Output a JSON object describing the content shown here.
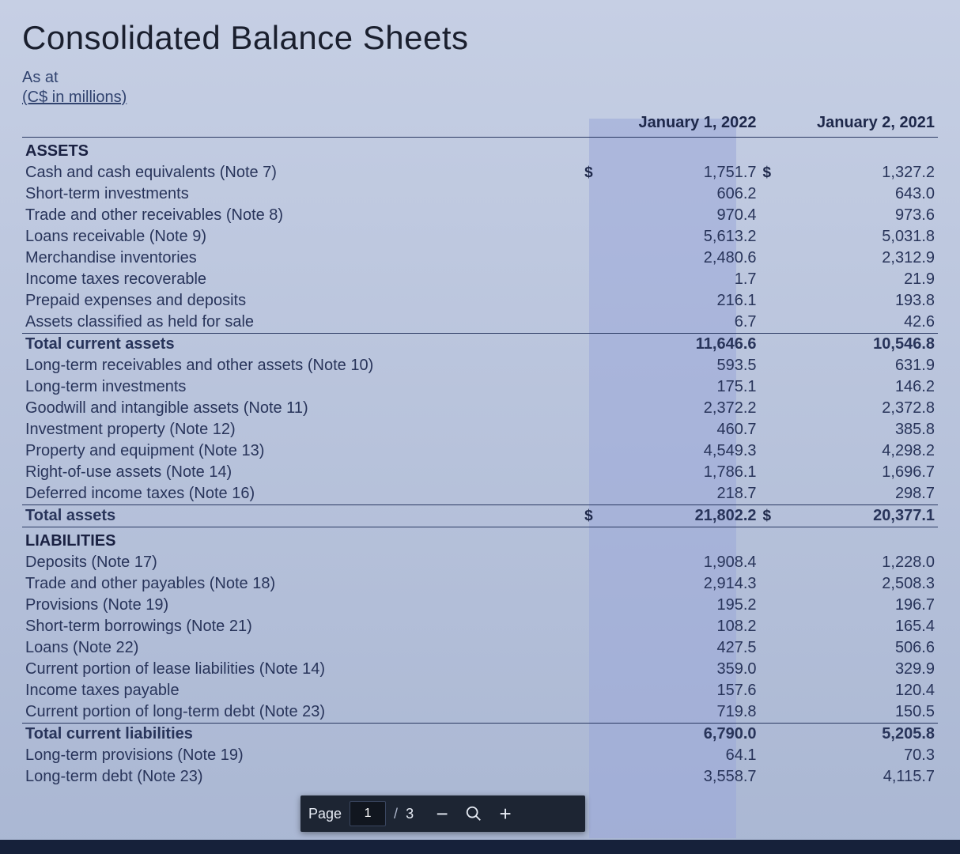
{
  "title": "Consolidated Balance Sheets",
  "as_at_label": "As at",
  "units_label": "(C$ in millions)",
  "columns": {
    "col1_header": "January 1, 2022",
    "col2_header": "January 2, 2021"
  },
  "currency_symbol": "$",
  "highlight": {
    "color": "#9aa8d8",
    "opacity": 0.55
  },
  "colors": {
    "page_bg_top": "#c6cfe4",
    "page_bg_bottom": "#aab7d3",
    "text": "#28345a",
    "rule": "#2b3a63",
    "toolbar_bg": "#1d2533"
  },
  "sections": [
    {
      "heading": "ASSETS",
      "groups": [
        {
          "rows": [
            {
              "label": "Cash and cash equivalents (Note 7)",
              "v1": "1,751.7",
              "v2": "1,327.2",
              "sym": true
            },
            {
              "label": "Short-term investments",
              "v1": "606.2",
              "v2": "643.0"
            },
            {
              "label": "Trade and other receivables (Note 8)",
              "v1": "970.4",
              "v2": "973.6"
            },
            {
              "label": "Loans receivable (Note 9)",
              "v1": "5,613.2",
              "v2": "5,031.8"
            },
            {
              "label": "Merchandise inventories",
              "v1": "2,480.6",
              "v2": "2,312.9"
            },
            {
              "label": "Income taxes recoverable",
              "v1": "1.7",
              "v2": "21.9"
            },
            {
              "label": "Prepaid expenses and deposits",
              "v1": "216.1",
              "v2": "193.8"
            },
            {
              "label": "Assets classified as held for sale",
              "v1": "6.7",
              "v2": "42.6",
              "rule_under": true
            }
          ],
          "total": {
            "label": "Total current assets",
            "v1": "11,646.6",
            "v2": "10,546.8"
          }
        },
        {
          "rows": [
            {
              "label": "Long-term receivables and other assets (Note 10)",
              "v1": "593.5",
              "v2": "631.9"
            },
            {
              "label": "Long-term investments",
              "v1": "175.1",
              "v2": "146.2"
            },
            {
              "label": "Goodwill and intangible assets (Note 11)",
              "v1": "2,372.2",
              "v2": "2,372.8"
            },
            {
              "label": "Investment property (Note 12)",
              "v1": "460.7",
              "v2": "385.8"
            },
            {
              "label": "Property and equipment (Note 13)",
              "v1": "4,549.3",
              "v2": "4,298.2"
            },
            {
              "label": "Right-of-use assets (Note 14)",
              "v1": "1,786.1",
              "v2": "1,696.7"
            },
            {
              "label": "Deferred income taxes (Note 16)",
              "v1": "218.7",
              "v2": "298.7",
              "rule_under": true
            }
          ],
          "grand_total": {
            "label": "Total assets",
            "v1": "21,802.2",
            "v2": "20,377.1",
            "sym": true
          }
        }
      ]
    },
    {
      "heading": "LIABILITIES",
      "groups": [
        {
          "rows": [
            {
              "label": "Deposits (Note 17)",
              "v1": "1,908.4",
              "v2": "1,228.0"
            },
            {
              "label": "Trade and other payables (Note 18)",
              "v1": "2,914.3",
              "v2": "2,508.3"
            },
            {
              "label": "Provisions (Note 19)",
              "v1": "195.2",
              "v2": "196.7"
            },
            {
              "label": "Short-term borrowings (Note 21)",
              "v1": "108.2",
              "v2": "165.4"
            },
            {
              "label": "Loans (Note 22)",
              "v1": "427.5",
              "v2": "506.6"
            },
            {
              "label": "Current portion of lease liabilities (Note 14)",
              "v1": "359.0",
              "v2": "329.9"
            },
            {
              "label": "Income taxes payable",
              "v1": "157.6",
              "v2": "120.4"
            },
            {
              "label": "Current portion of long-term debt (Note 23)",
              "v1": "719.8",
              "v2": "150.5",
              "rule_under": true
            }
          ],
          "total": {
            "label": "Total current liabilities",
            "v1": "6,790.0",
            "v2": "5,205.8"
          }
        },
        {
          "rows": [
            {
              "label": "Long-term provisions (Note 19)",
              "v1": "64.1",
              "v2": "70.3"
            },
            {
              "label": "Long-term debt (Note 23)",
              "v1": "3,558.7",
              "v2": "4,115.7"
            }
          ]
        }
      ]
    }
  ],
  "toolbar": {
    "page_label": "Page",
    "current_page": "1",
    "total_pages": "3",
    "separator": "/",
    "zoom_out_label": "−",
    "zoom_reset_name": "zoom-reset",
    "zoom_in_label": "+"
  }
}
